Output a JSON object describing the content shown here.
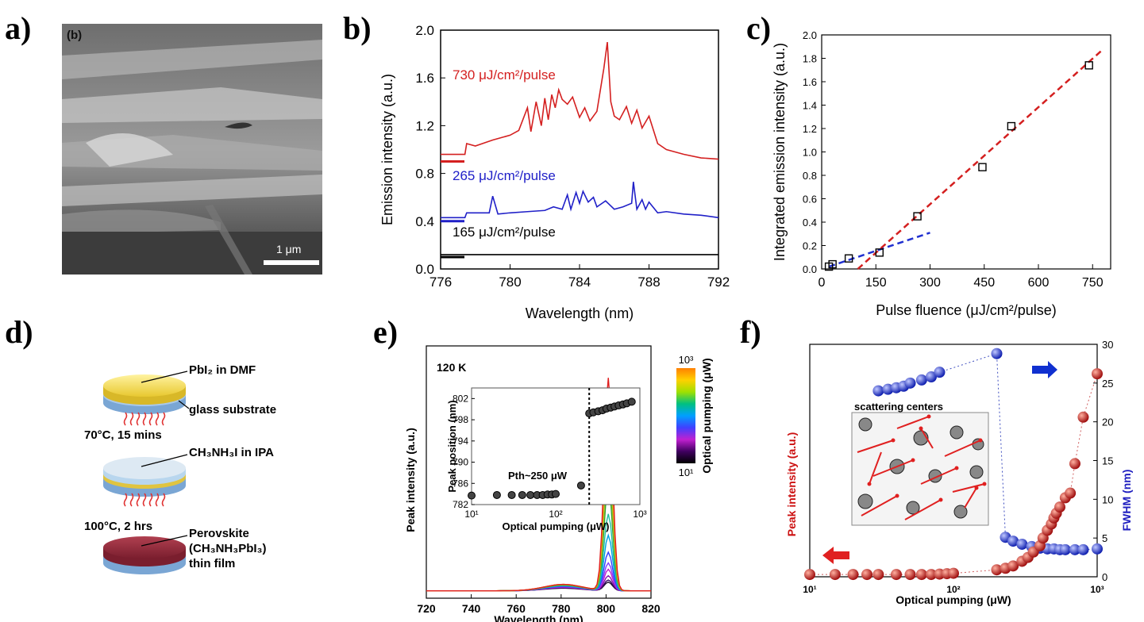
{
  "panels": {
    "a": "a)",
    "b": "b)",
    "c": "c)",
    "d": "d)",
    "e": "e)",
    "f": "f)"
  },
  "sem": {
    "tag": "(b)",
    "scale": "1 μm"
  },
  "chart_b": {
    "type": "line",
    "xlabel": "Wavelength (nm)",
    "ylabel": "Emission intensity (a.u.)",
    "xlim": [
      776,
      792
    ],
    "ylim": [
      0,
      2.0
    ],
    "xticks": [
      "776",
      "780",
      "784",
      "788",
      "792"
    ],
    "yticks": [
      "0.0",
      "0.4",
      "0.8",
      "1.2",
      "1.6",
      "2.0"
    ],
    "series": [
      {
        "name": "730 μJ/cm²/pulse",
        "color": "#d42020",
        "baseline": 0.9,
        "x": [
          776,
          777.4,
          777.5,
          778,
          779,
          780,
          780.5,
          781,
          781.2,
          781.5,
          781.8,
          782,
          782.2,
          782.4,
          782.6,
          782.8,
          783,
          783.3,
          783.6,
          784,
          784.3,
          784.6,
          785,
          785.4,
          785.6,
          785.8,
          786,
          786.3,
          786.7,
          787,
          787.3,
          787.6,
          788,
          788.5,
          789,
          790,
          791,
          792
        ],
        "y": [
          0.96,
          0.96,
          1.05,
          1.03,
          1.08,
          1.12,
          1.16,
          1.35,
          1.15,
          1.4,
          1.2,
          1.43,
          1.25,
          1.46,
          1.35,
          1.5,
          1.42,
          1.38,
          1.44,
          1.27,
          1.35,
          1.24,
          1.32,
          1.68,
          1.9,
          1.4,
          1.28,
          1.25,
          1.36,
          1.22,
          1.33,
          1.18,
          1.28,
          1.05,
          1.0,
          0.96,
          0.93,
          0.92
        ]
      },
      {
        "name": "265 μJ/cm²/pulse",
        "color": "#2020c8",
        "baseline": 0.4,
        "x": [
          776,
          777.4,
          777.5,
          778.8,
          779,
          779.3,
          780,
          781,
          782,
          782.5,
          783,
          783.3,
          783.5,
          783.8,
          784,
          784.2,
          784.5,
          784.8,
          785,
          785.5,
          786,
          786.5,
          787,
          787.1,
          787.3,
          787.6,
          787.8,
          788,
          788.5,
          789,
          790,
          791,
          792
        ],
        "y": [
          0.43,
          0.43,
          0.47,
          0.47,
          0.61,
          0.46,
          0.47,
          0.48,
          0.49,
          0.52,
          0.5,
          0.62,
          0.5,
          0.64,
          0.55,
          0.65,
          0.56,
          0.6,
          0.52,
          0.57,
          0.5,
          0.52,
          0.55,
          0.73,
          0.5,
          0.58,
          0.5,
          0.56,
          0.47,
          0.48,
          0.46,
          0.45,
          0.43
        ]
      },
      {
        "name": "165 μJ/cm²/pulse",
        "color": "#000000",
        "baseline": 0.1,
        "x": [
          776,
          792
        ],
        "y": [
          0.12,
          0.12
        ]
      }
    ]
  },
  "chart_c": {
    "type": "scatter",
    "xlabel": "Pulse fluence (μJ/cm²/pulse)",
    "ylabel": "Integrated emission intensity (a.u.)",
    "xlim": [
      0,
      800
    ],
    "ylim": [
      0,
      2.0
    ],
    "xticks": [
      "0",
      "150",
      "300",
      "450",
      "600",
      "750"
    ],
    "yticks": [
      "0.0",
      "0.2",
      "0.4",
      "0.6",
      "0.8",
      "1.0",
      "1.2",
      "1.4",
      "1.6",
      "1.8",
      "2.0"
    ],
    "x": [
      20,
      30,
      75,
      160,
      265,
      445,
      525,
      740
    ],
    "y": [
      0.02,
      0.04,
      0.09,
      0.14,
      0.45,
      0.87,
      1.22,
      1.74
    ],
    "fit_low": {
      "x": [
        20,
        300
      ],
      "y": [
        0.02,
        0.31
      ],
      "color": "#2030d0"
    },
    "fit_high": {
      "x": [
        100,
        780
      ],
      "y": [
        0.0,
        1.88
      ],
      "color": "#d42020"
    }
  },
  "schematic": {
    "layer1": "PbI₂ in DMF",
    "layer1b": "glass substrate",
    "step1": "70°C, 15 mins",
    "layer2": "CH₃NH₃I in IPA",
    "step2": "100°C, 2 hrs",
    "layer3a": "Perovskite",
    "layer3b": "(CH₃NH₃PbI₃)",
    "layer3c": "thin film"
  },
  "chart_e": {
    "type": "line",
    "xlabel": "Wavelength (nm)",
    "ylabel": "Peak intensity (a.u.)",
    "xlim": [
      720,
      820
    ],
    "xticks": [
      "720",
      "740",
      "760",
      "780",
      "800",
      "820"
    ],
    "temp": "120 K",
    "colorbar": {
      "label": "Optical pumping (μW)",
      "top": "10³",
      "bottom": "10¹"
    },
    "peak_amplitudes": [
      0.04,
      0.05,
      0.07,
      0.1,
      0.13,
      0.18,
      0.26,
      0.36,
      0.5,
      0.62,
      0.76,
      0.87,
      1.0
    ],
    "series_colors": [
      "#1a0a2e",
      "#3a0a6a",
      "#8a10b0",
      "#c020d0",
      "#8040ff",
      "#3040ff",
      "#00a0e0",
      "#20c0a0",
      "#30a030",
      "#90c020",
      "#e0c010",
      "#f08020",
      "#e02020"
    ],
    "inset": {
      "xlabel": "Optical pumping (μW)",
      "ylabel": "Peak position (nm)",
      "yticks": [
        "782",
        "786",
        "790",
        "794",
        "798",
        "802"
      ],
      "xticks": [
        "10¹",
        "10²",
        "10³"
      ],
      "threshold": "P<tspan baseline-shift=\"sub\">th</tspan>~250 μW",
      "threshold_text": "Pth~250 μW",
      "x": [
        10,
        20,
        30,
        40,
        50,
        60,
        70,
        80,
        90,
        100,
        200,
        250,
        280,
        320,
        360,
        400,
        450,
        500,
        560,
        630,
        700,
        800
      ],
      "y": [
        783.7,
        783.8,
        783.8,
        783.8,
        783.8,
        783.8,
        783.8,
        783.9,
        783.9,
        784.0,
        785.6,
        799.2,
        799.4,
        799.6,
        799.8,
        800.1,
        800.3,
        800.5,
        800.7,
        800.9,
        801.1,
        801.4
      ]
    }
  },
  "chart_f": {
    "type": "scatter",
    "xlabel": "Optical pumping (μW)",
    "ylabel_left": "Peak intensity (a.u.)",
    "ylabel_right": "FWHM (nm)",
    "yticks_right": [
      "0",
      "5",
      "10",
      "15",
      "20",
      "25",
      "30"
    ],
    "xticks": [
      "10¹",
      "10²",
      "10³"
    ],
    "inset_label": "scattering centers",
    "intensity": {
      "x": [
        10,
        15,
        20,
        25,
        30,
        40,
        50,
        60,
        70,
        80,
        90,
        100,
        200,
        230,
        260,
        300,
        330,
        360,
        400,
        420,
        450,
        480,
        500,
        520,
        550,
        600,
        650,
        700,
        800,
        1000
      ],
      "y": [
        0.3,
        0.3,
        0.3,
        0.3,
        0.3,
        0.3,
        0.3,
        0.3,
        0.3,
        0.35,
        0.4,
        0.45,
        0.9,
        1.1,
        1.4,
        2.0,
        2.5,
        3.2,
        4.0,
        5.0,
        6.0,
        6.8,
        7.6,
        8.2,
        9.0,
        10.2,
        10.8,
        14.6,
        20.6,
        26.2
      ]
    },
    "fwhm": {
      "x": [
        30,
        35,
        40,
        45,
        50,
        60,
        70,
        80,
        200,
        230,
        260,
        300,
        350,
        400,
        450,
        500,
        550,
        600,
        700,
        800,
        1000
      ],
      "y": [
        24.0,
        24.2,
        24.4,
        24.6,
        25.0,
        25.4,
        25.8,
        26.4,
        28.8,
        5.1,
        4.6,
        4.2,
        3.9,
        3.7,
        3.6,
        3.6,
        3.5,
        3.5,
        3.5,
        3.5,
        3.6
      ]
    }
  }
}
